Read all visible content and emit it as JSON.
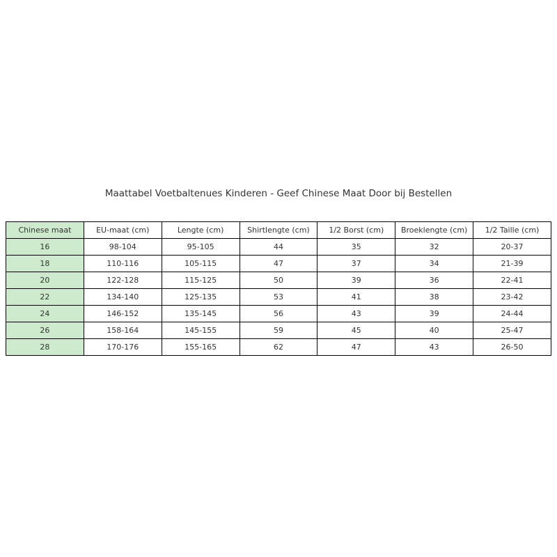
{
  "title": "Maattabel Voetbaltenues Kinderen - Geef Chinese Maat Door bij Bestellen",
  "colors": {
    "background": "#ffffff",
    "row_label_bg": "#cdeacd",
    "grid_border": "#000000",
    "text": "#333333"
  },
  "chart_data": {
    "type": "table",
    "title": "Maattabel Voetbaltenues Kinderen - Geef Chinese Maat Door bij Bestellen",
    "columns": [
      "Chinese maat",
      "EU-maat (cm)",
      "Lengte (cm)",
      "Shirtlengte (cm)",
      "1/2 Borst (cm)",
      "Broeklengte (cm)",
      "1/2 Taille (cm)"
    ],
    "rows": [
      [
        "16",
        "98-104",
        "95-105",
        "44",
        "35",
        "32",
        "20-37"
      ],
      [
        "18",
        "110-116",
        "105-115",
        "47",
        "37",
        "34",
        "21-39"
      ],
      [
        "20",
        "122-128",
        "115-125",
        "50",
        "39",
        "36",
        "22-41"
      ],
      [
        "22",
        "134-140",
        "125-135",
        "53",
        "41",
        "38",
        "23-42"
      ],
      [
        "24",
        "146-152",
        "135-145",
        "56",
        "43",
        "39",
        "24-44"
      ],
      [
        "26",
        "158-164",
        "145-155",
        "59",
        "45",
        "40",
        "25-47"
      ],
      [
        "28",
        "170-176",
        "155-165",
        "62",
        "47",
        "43",
        "26-50"
      ]
    ],
    "layout": {
      "first_column_highlighted": true,
      "grid": true,
      "columns_equal_width": true
    }
  }
}
